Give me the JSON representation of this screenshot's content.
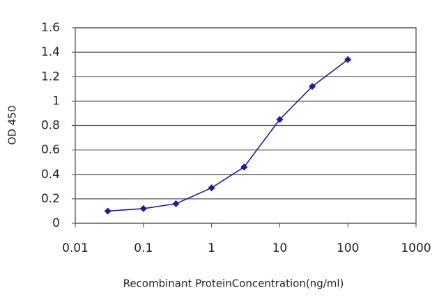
{
  "chart_data": {
    "type": "line",
    "x_label": "Recombinant ProteinConcentration(ng/ml)",
    "y_label": "OD 450",
    "x": [
      0.03,
      0.1,
      0.3,
      1,
      3,
      10,
      30,
      100
    ],
    "values": [
      0.1,
      0.12,
      0.16,
      0.29,
      0.46,
      0.85,
      1.12,
      1.34
    ],
    "color": "#1c1c9c",
    "xscale": "log",
    "xlim": [
      0.01,
      1000
    ],
    "xticks": [
      0.01,
      0.1,
      1,
      10,
      100,
      1000
    ],
    "ylim": [
      0,
      1.6
    ],
    "yticks": [
      0,
      0.2,
      0.4,
      0.6,
      0.8,
      1,
      1.2,
      1.4,
      1.6
    ],
    "grid": true
  }
}
